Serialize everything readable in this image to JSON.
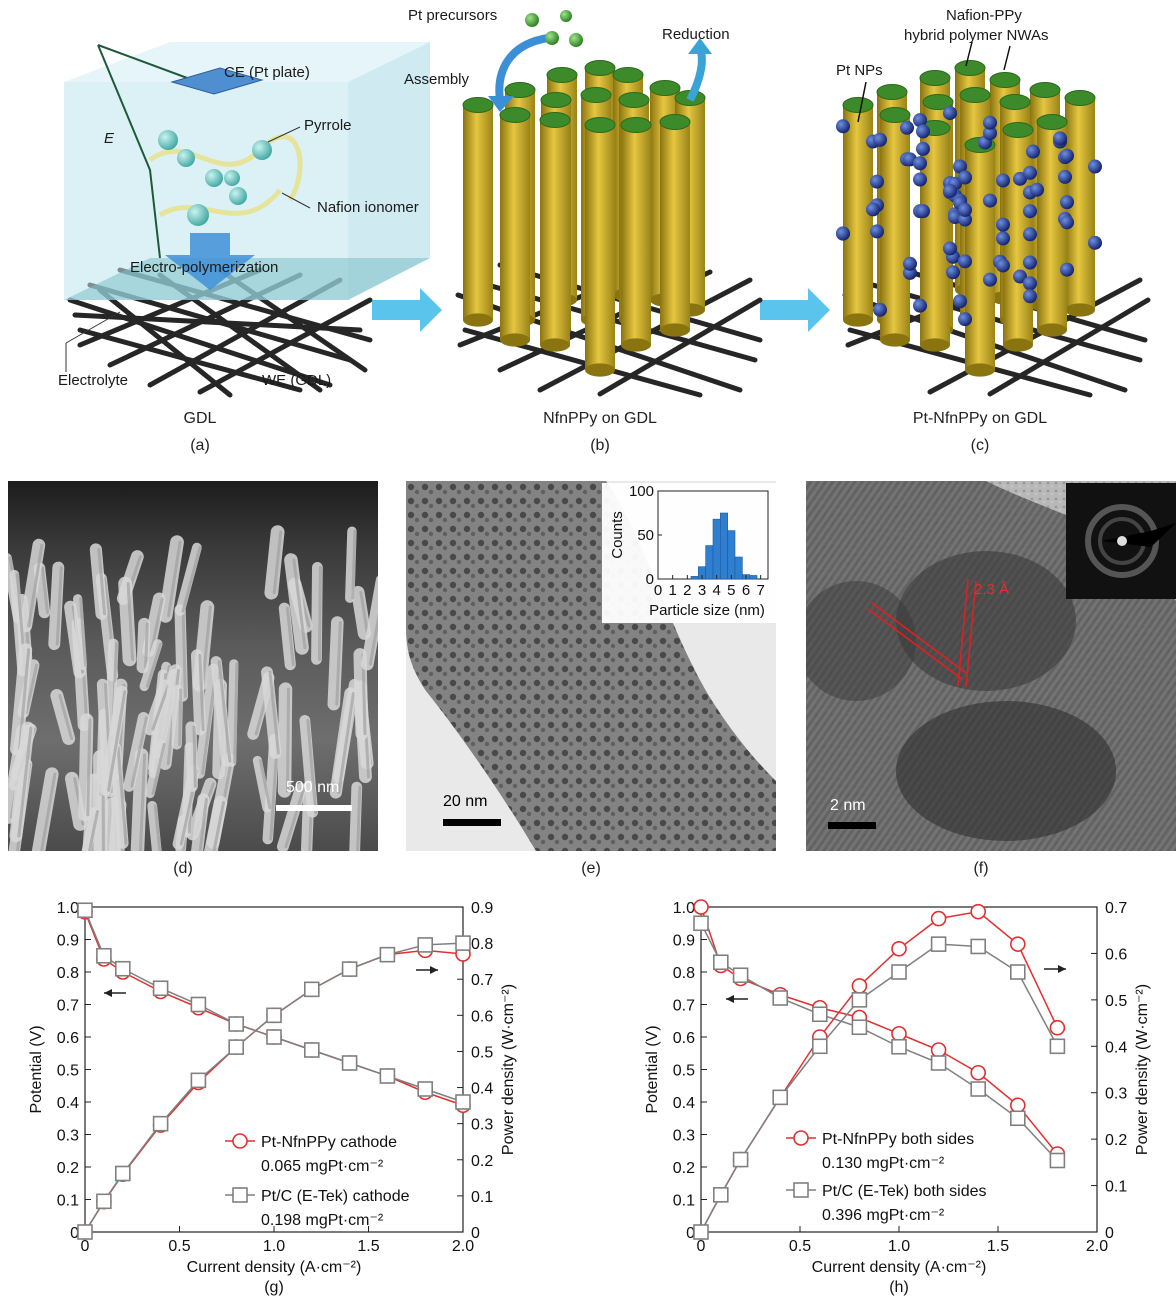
{
  "top": {
    "a": {
      "ce": "CE (Pt plate)",
      "e": "E",
      "pyrrole": "Pyrrole",
      "nafion": "Nafion ionomer",
      "electro": "Electro-polymerization",
      "electrolyte": "Electrolyte",
      "we": "WE (GDL)",
      "bottom": "GDL",
      "panel": "(a)"
    },
    "b": {
      "precursors": "Pt precursors",
      "assembly": "Assembly",
      "reduction": "Reduction",
      "bottom": "NfnPPy on GDL",
      "panel": "(b)"
    },
    "c": {
      "nafion1": "Nafion-PPy",
      "nafion2": "hybrid polymer NWAs",
      "ptnps": "Pt NPs",
      "bottom": "Pt-NfnPPy on GDL",
      "panel": "(c)"
    }
  },
  "micro": {
    "d": {
      "scale": "500 nm",
      "panel": "(d)"
    },
    "e": {
      "scale": "20 nm",
      "panel": "(e)"
    },
    "f": {
      "scale": "2 nm",
      "spacing": "2.3 Å",
      "panel": "(f)"
    }
  },
  "inset_hist": {
    "ylabel": "Counts",
    "xlabel": "Particle size (nm)",
    "ylim": [
      0,
      100
    ],
    "yticks": [
      "0",
      "50",
      "100"
    ],
    "xticks": [
      "0",
      "1",
      "2",
      "3",
      "4",
      "5",
      "6",
      "7"
    ],
    "bins": [
      2.5,
      3.0,
      3.5,
      4.0,
      4.5,
      5.0,
      5.5,
      6.0,
      6.5
    ],
    "values": [
      3,
      14,
      38,
      68,
      75,
      55,
      25,
      5,
      4
    ]
  },
  "chart_data": [
    {
      "type": "line",
      "panel": "(g)",
      "xlabel": "Current density (A·cm⁻²)",
      "ylabel_left": "Potential (V)",
      "ylabel_right": "Power density (W·cm⁻²)",
      "xlim": [
        0,
        2.0
      ],
      "ylim_left": [
        0,
        1.0
      ],
      "ylim_right": [
        0,
        0.9
      ],
      "xticks": [
        "0",
        "0.5",
        "1.0",
        "1.5",
        "2.0"
      ],
      "yticks_left": [
        "0",
        "0.1",
        "0.2",
        "0.3",
        "0.4",
        "0.5",
        "0.6",
        "0.7",
        "0.8",
        "0.9",
        "1.0"
      ],
      "yticks_right": [
        "0",
        "0.1",
        "0.2",
        "0.3",
        "0.4",
        "0.5",
        "0.6",
        "0.7",
        "0.8",
        "0.9"
      ],
      "legend": [
        {
          "name": "Pt-NfnPPy cathode",
          "sub": "0.065 mgPt·cm⁻²",
          "marker": "circle",
          "color": "#e03030"
        },
        {
          "name": "Pt/C (E-Tek) cathode",
          "sub": "0.198 mgPt·cm⁻²",
          "marker": "square",
          "color": "#808080"
        }
      ],
      "x": [
        0,
        0.1,
        0.2,
        0.4,
        0.6,
        0.8,
        1.0,
        1.2,
        1.4,
        1.6,
        1.8,
        2.0
      ],
      "series": [
        {
          "name": "Pt-NfnPPy cathode",
          "axis": "left",
          "marker": "circle",
          "color": "#e03030",
          "values": [
            0.985,
            0.84,
            0.8,
            0.74,
            0.69,
            0.64,
            0.6,
            0.56,
            0.52,
            0.48,
            0.43,
            0.39
          ]
        },
        {
          "name": "Pt/C (E-Tek) cathode",
          "axis": "left",
          "marker": "square",
          "color": "#808080",
          "values": [
            0.99,
            0.85,
            0.81,
            0.75,
            0.7,
            0.64,
            0.6,
            0.56,
            0.52,
            0.48,
            0.44,
            0.4
          ]
        },
        {
          "name": "Pt-NfnPPy cathode",
          "axis": "right",
          "marker": "circle",
          "color": "#e03030",
          "values": [
            0,
            0.084,
            0.16,
            0.296,
            0.414,
            0.512,
            0.6,
            0.672,
            0.728,
            0.768,
            0.78,
            0.77
          ]
        },
        {
          "name": "Pt/C (E-Tek) cathode",
          "axis": "right",
          "marker": "square",
          "color": "#808080",
          "values": [
            0,
            0.085,
            0.162,
            0.3,
            0.42,
            0.512,
            0.6,
            0.672,
            0.728,
            0.768,
            0.795,
            0.8
          ]
        }
      ]
    },
    {
      "type": "line",
      "panel": "(h)",
      "xlabel": "Current density (A·cm⁻²)",
      "ylabel_left": "Potential (V)",
      "ylabel_right": "Power density (W·cm⁻²)",
      "xlim": [
        0,
        2.0
      ],
      "ylim_left": [
        0,
        1.0
      ],
      "ylim_right": [
        0,
        0.7
      ],
      "xticks": [
        "0",
        "0.5",
        "1.0",
        "1.5",
        "2.0"
      ],
      "yticks_left": [
        "0",
        "0.1",
        "0.2",
        "0.3",
        "0.4",
        "0.5",
        "0.6",
        "0.7",
        "0.8",
        "0.9",
        "1.0"
      ],
      "yticks_right": [
        "0",
        "0.1",
        "0.2",
        "0.3",
        "0.4",
        "0.5",
        "0.6",
        "0.7"
      ],
      "legend": [
        {
          "name": "Pt-NfnPPy both sides",
          "sub": "0.130 mgPt·cm⁻²",
          "marker": "circle",
          "color": "#e03030"
        },
        {
          "name": "Pt/C (E-Tek) both sides",
          "sub": "0.396 mgPt·cm⁻²",
          "marker": "square",
          "color": "#808080"
        }
      ],
      "x": [
        0,
        0.1,
        0.2,
        0.4,
        0.6,
        0.8,
        1.0,
        1.2,
        1.4,
        1.6,
        1.8
      ],
      "series": [
        {
          "name": "Pt-NfnPPy both sides",
          "axis": "left",
          "marker": "circle",
          "color": "#e03030",
          "values": [
            1.0,
            0.82,
            0.78,
            0.73,
            0.69,
            0.66,
            0.61,
            0.56,
            0.49,
            0.39,
            0.24
          ]
        },
        {
          "name": "Pt/C (E-Tek) both sides",
          "axis": "left",
          "marker": "square",
          "color": "#808080",
          "values": [
            0.95,
            0.83,
            0.79,
            0.72,
            0.67,
            0.63,
            0.57,
            0.52,
            0.44,
            0.35,
            0.22
          ]
        },
        {
          "name": "Pt-NfnPPy both sides",
          "axis": "right",
          "marker": "circle",
          "color": "#e03030",
          "values": [
            0,
            0.08,
            0.156,
            0.29,
            0.42,
            0.53,
            0.61,
            0.675,
            0.69,
            0.62,
            0.44
          ]
        },
        {
          "name": "Pt/C (E-Tek) both sides",
          "axis": "right",
          "marker": "square",
          "color": "#808080",
          "values": [
            0,
            0.08,
            0.156,
            0.29,
            0.4,
            0.5,
            0.56,
            0.62,
            0.615,
            0.56,
            0.4
          ]
        }
      ]
    }
  ]
}
